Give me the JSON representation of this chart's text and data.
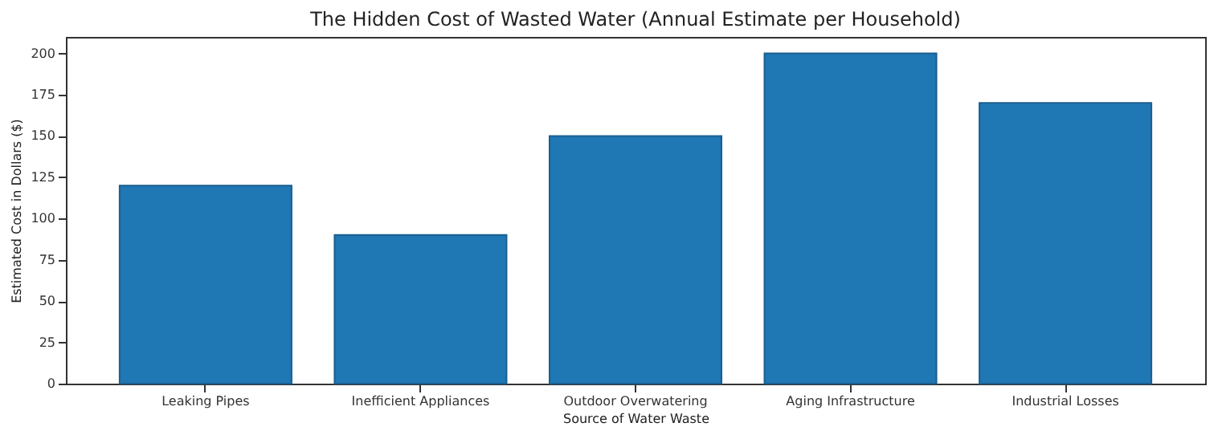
{
  "chart_data": {
    "type": "bar",
    "title": "The Hidden Cost of Wasted Water (Annual Estimate per Household)",
    "xlabel": "Source of Water Waste",
    "ylabel": "Estimated Cost in Dollars ($)",
    "categories": [
      "Leaking Pipes",
      "Inefficient Appliances",
      "Outdoor Overwatering",
      "Aging Infrastructure",
      "Industrial Losses"
    ],
    "values": [
      120,
      90,
      150,
      200,
      170
    ],
    "color": "#1f77b4",
    "ylim": [
      0,
      210
    ],
    "yticks": [
      0,
      25,
      50,
      75,
      100,
      125,
      150,
      175,
      200
    ],
    "grid": false
  }
}
